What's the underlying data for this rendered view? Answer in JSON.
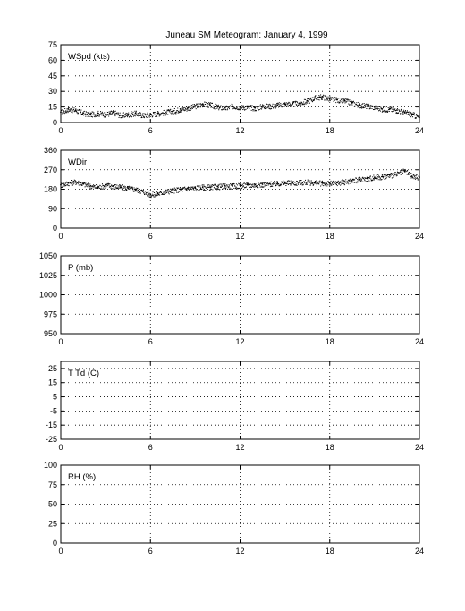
{
  "title": "Juneau SM Meteogram:    January  4, 1999",
  "chart_data": [
    {
      "type": "scatter",
      "label": "WSpd (kts)",
      "xlim": [
        0,
        24
      ],
      "xticks": [
        "0",
        "6",
        "12",
        "18",
        "24"
      ],
      "ylim": [
        0,
        75
      ],
      "yticks": [
        "0",
        "15",
        "30",
        "45",
        "60",
        "75"
      ],
      "grid": true,
      "x": [
        0,
        0.5,
        1,
        1.5,
        2,
        2.5,
        3,
        3.5,
        4,
        4.5,
        5,
        5.5,
        6,
        6.5,
        7,
        7.5,
        8,
        8.5,
        9,
        9.5,
        10,
        10.5,
        11,
        11.5,
        12,
        12.5,
        13,
        13.5,
        14,
        14.5,
        15,
        15.5,
        16,
        16.5,
        17,
        17.5,
        18,
        18.5,
        19,
        19.5,
        20,
        20.5,
        21,
        21.5,
        22,
        22.5,
        23,
        23.5,
        24
      ],
      "y": [
        10,
        13,
        12,
        9,
        8,
        9,
        8,
        10,
        7,
        8,
        9,
        7,
        8,
        9,
        10,
        11,
        13,
        14,
        16,
        18,
        17,
        15,
        14,
        16,
        15,
        15,
        14,
        16,
        16,
        17,
        18,
        18,
        19,
        21,
        24,
        25,
        23,
        22,
        21,
        19,
        17,
        16,
        15,
        13,
        13,
        12,
        10,
        8,
        5
      ]
    },
    {
      "type": "scatter",
      "label": "WDir",
      "xlim": [
        0,
        24
      ],
      "xticks": [
        "0",
        "6",
        "12",
        "18",
        "24"
      ],
      "ylim": [
        0,
        360
      ],
      "yticks": [
        "0",
        "90",
        "180",
        "270",
        "360"
      ],
      "grid": true,
      "x": [
        0,
        0.5,
        1,
        1.5,
        2,
        2.5,
        3,
        3.5,
        4,
        4.5,
        5,
        5.5,
        6,
        6.5,
        7,
        7.5,
        8,
        8.5,
        9,
        9.5,
        10,
        10.5,
        11,
        11.5,
        12,
        12.5,
        13,
        13.5,
        14,
        14.5,
        15,
        15.5,
        16,
        16.5,
        17,
        17.5,
        18,
        18.5,
        19,
        19.5,
        20,
        20.5,
        21,
        21.5,
        22,
        22.5,
        23,
        23.5,
        24
      ],
      "y": [
        200,
        210,
        215,
        205,
        195,
        190,
        200,
        195,
        190,
        185,
        180,
        170,
        155,
        160,
        170,
        175,
        180,
        185,
        185,
        190,
        190,
        192,
        195,
        195,
        197,
        200,
        200,
        203,
        205,
        207,
        210,
        210,
        212,
        213,
        210,
        208,
        207,
        210,
        215,
        220,
        225,
        230,
        235,
        238,
        245,
        250,
        265,
        240,
        235
      ]
    },
    {
      "type": "scatter",
      "label": "P (mb)",
      "xlim": [
        0,
        24
      ],
      "xticks": [
        "0",
        "6",
        "12",
        "18",
        "24"
      ],
      "ylim": [
        950,
        1050
      ],
      "yticks": [
        "950",
        "975",
        "1000",
        "1025",
        "1050"
      ],
      "grid": true,
      "x": [],
      "y": []
    },
    {
      "type": "scatter",
      "label": "T Td (C)",
      "xlim": [
        0,
        24
      ],
      "xticks": [
        "0",
        "6",
        "12",
        "18",
        "24"
      ],
      "ylim": [
        -25,
        25
      ],
      "yticks": [
        "-25",
        "-15",
        "-5",
        "5",
        "15",
        "25"
      ],
      "ymax_axis": 30,
      "grid": true,
      "x": [],
      "y": []
    },
    {
      "type": "scatter",
      "label": "RH (%)",
      "xlim": [
        0,
        24
      ],
      "xticks": [
        "0",
        "6",
        "12",
        "18",
        "24"
      ],
      "ylim": [
        0,
        100
      ],
      "yticks": [
        "0",
        "25",
        "50",
        "75",
        "100"
      ],
      "grid": true,
      "x": [],
      "y": []
    }
  ]
}
